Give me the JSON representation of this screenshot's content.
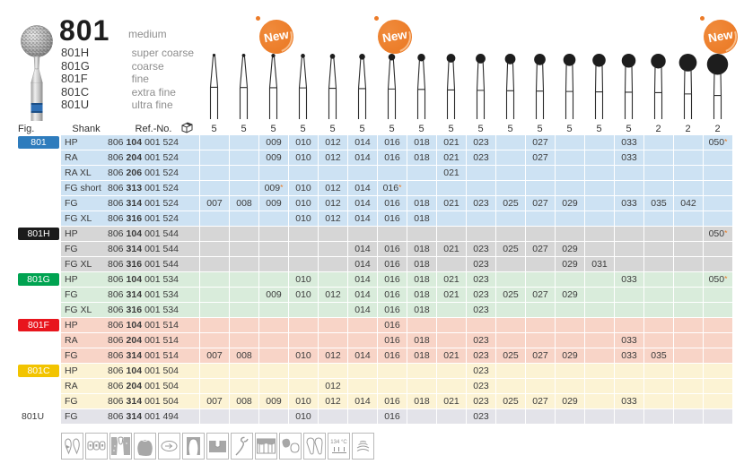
{
  "page": {
    "product_number": "801",
    "product_finish": "medium",
    "variants": [
      {
        "code": "801H",
        "finish": "super coarse"
      },
      {
        "code": "801G",
        "finish": "coarse"
      },
      {
        "code": "801F",
        "finish": "fine"
      },
      {
        "code": "801C",
        "finish": "extra fine"
      },
      {
        "code": "801U",
        "finish": "ultra fine"
      }
    ]
  },
  "badges": {
    "label": "New",
    "color": "#ec7b28",
    "columns": [
      3,
      7,
      18
    ]
  },
  "burs": {
    "head_sizes": [
      7,
      8,
      9,
      10,
      12,
      14,
      16,
      18,
      21,
      23,
      25,
      27,
      29,
      31,
      33,
      35,
      42,
      50
    ]
  },
  "table": {
    "headers": {
      "fig": "Fig.",
      "shank": "Shank",
      "ref": "Ref.-No."
    },
    "pack_sizes": [
      "5",
      "5",
      "5",
      "5",
      "5",
      "5",
      "5",
      "5",
      "5",
      "5",
      "5",
      "5",
      "5",
      "5",
      "5",
      "2",
      "2",
      "2"
    ],
    "groups": [
      {
        "fig": "801",
        "chip_color": "#2e7cbd",
        "chip_text_color": "#ffffff",
        "row_color": "#cde2f3",
        "rows": [
          {
            "shank": "HP",
            "ref": {
              "a": "806",
              "b": "104",
              "c": "001 524"
            },
            "sizes": [
              "",
              "",
              "009",
              "010",
              "012",
              "014",
              "016",
              "018",
              "021",
              "023",
              "",
              "027",
              "",
              "",
              "033",
              "",
              "",
              "050*"
            ]
          },
          {
            "shank": "RA",
            "ref": {
              "a": "806",
              "b": "204",
              "c": "001 524"
            },
            "sizes": [
              "",
              "",
              "009",
              "010",
              "012",
              "014",
              "016",
              "018",
              "021",
              "023",
              "",
              "027",
              "",
              "",
              "033",
              "",
              "",
              ""
            ]
          },
          {
            "shank": "RA XL",
            "ref": {
              "a": "806",
              "b": "206",
              "c": "001 524"
            },
            "sizes": [
              "",
              "",
              "",
              "",
              "",
              "",
              "",
              "",
              "021",
              "",
              "",
              "",
              "",
              "",
              "",
              "",
              "",
              ""
            ]
          },
          {
            "shank": "FG short",
            "ref": {
              "a": "806",
              "b": "313",
              "c": "001 524"
            },
            "sizes": [
              "",
              "",
              "009*",
              "010",
              "012",
              "014",
              "016*",
              "",
              "",
              "",
              "",
              "",
              "",
              "",
              "",
              "",
              "",
              ""
            ]
          },
          {
            "shank": "FG",
            "ref": {
              "a": "806",
              "b": "314",
              "c": "001 524"
            },
            "sizes": [
              "007",
              "008",
              "009",
              "010",
              "012",
              "014",
              "016",
              "018",
              "021",
              "023",
              "025",
              "027",
              "029",
              "",
              "033",
              "035",
              "042",
              ""
            ]
          },
          {
            "shank": "FG XL",
            "ref": {
              "a": "806",
              "b": "316",
              "c": "001 524"
            },
            "sizes": [
              "",
              "",
              "",
              "010",
              "012",
              "014",
              "016",
              "018",
              "",
              "",
              "",
              "",
              "",
              "",
              "",
              "",
              "",
              ""
            ]
          }
        ]
      },
      {
        "fig": "801H",
        "chip_color": "#1b1b1b",
        "chip_text_color": "#ffffff",
        "row_color": "#d6d6d6",
        "rows": [
          {
            "shank": "HP",
            "ref": {
              "a": "806",
              "b": "104",
              "c": "001 544"
            },
            "sizes": [
              "",
              "",
              "",
              "",
              "",
              "",
              "",
              "",
              "",
              "",
              "",
              "",
              "",
              "",
              "",
              "",
              "",
              "050*"
            ]
          },
          {
            "shank": "FG",
            "ref": {
              "a": "806",
              "b": "314",
              "c": "001 544"
            },
            "sizes": [
              "",
              "",
              "",
              "",
              "",
              "014",
              "016",
              "018",
              "021",
              "023",
              "025",
              "027",
              "029",
              "",
              "",
              "",
              "",
              ""
            ]
          },
          {
            "shank": "FG XL",
            "ref": {
              "a": "806",
              "b": "316",
              "c": "001 544"
            },
            "sizes": [
              "",
              "",
              "",
              "",
              "",
              "014",
              "016",
              "018",
              "",
              "023",
              "",
              "",
              "029",
              "031",
              "",
              "",
              "",
              ""
            ]
          }
        ]
      },
      {
        "fig": "801G",
        "chip_color": "#00a351",
        "chip_text_color": "#ffffff",
        "row_color": "#d9ecdb",
        "rows": [
          {
            "shank": "HP",
            "ref": {
              "a": "806",
              "b": "104",
              "c": "001 534"
            },
            "sizes": [
              "",
              "",
              "",
              "010",
              "",
              "014",
              "016",
              "018",
              "021",
              "023",
              "",
              "",
              "",
              "",
              "033",
              "",
              "",
              "050*"
            ]
          },
          {
            "shank": "FG",
            "ref": {
              "a": "806",
              "b": "314",
              "c": "001 534"
            },
            "sizes": [
              "",
              "",
              "009",
              "010",
              "012",
              "014",
              "016",
              "018",
              "021",
              "023",
              "025",
              "027",
              "029",
              "",
              "",
              "",
              "",
              ""
            ]
          },
          {
            "shank": "FG XL",
            "ref": {
              "a": "806",
              "b": "316",
              "c": "001 534"
            },
            "sizes": [
              "",
              "",
              "",
              "",
              "",
              "014",
              "016",
              "018",
              "",
              "023",
              "",
              "",
              "",
              "",
              "",
              "",
              "",
              ""
            ]
          }
        ]
      },
      {
        "fig": "801F",
        "chip_color": "#e8151d",
        "chip_text_color": "#ffffff",
        "row_color": "#f8d4c7",
        "rows": [
          {
            "shank": "HP",
            "ref": {
              "a": "806",
              "b": "104",
              "c": "001 514"
            },
            "sizes": [
              "",
              "",
              "",
              "",
              "",
              "",
              "016",
              "",
              "",
              "",
              "",
              "",
              "",
              "",
              "",
              "",
              "",
              ""
            ]
          },
          {
            "shank": "RA",
            "ref": {
              "a": "806",
              "b": "204",
              "c": "001 514"
            },
            "sizes": [
              "",
              "",
              "",
              "",
              "",
              "",
              "016",
              "018",
              "",
              "023",
              "",
              "",
              "",
              "",
              "033",
              "",
              "",
              ""
            ]
          },
          {
            "shank": "FG",
            "ref": {
              "a": "806",
              "b": "314",
              "c": "001 514"
            },
            "sizes": [
              "007",
              "008",
              "",
              "010",
              "012",
              "014",
              "016",
              "018",
              "021",
              "023",
              "025",
              "027",
              "029",
              "",
              "033",
              "035",
              "",
              ""
            ]
          }
        ]
      },
      {
        "fig": "801C",
        "chip_color": "#f2c400",
        "chip_text_color": "#ffffff",
        "row_color": "#fcf3d4",
        "rows": [
          {
            "shank": "HP",
            "ref": {
              "a": "806",
              "b": "104",
              "c": "001 504"
            },
            "sizes": [
              "",
              "",
              "",
              "",
              "",
              "",
              "",
              "",
              "",
              "023",
              "",
              "",
              "",
              "",
              "",
              "",
              "",
              ""
            ]
          },
          {
            "shank": "RA",
            "ref": {
              "a": "806",
              "b": "204",
              "c": "001 504"
            },
            "sizes": [
              "",
              "",
              "",
              "",
              "012",
              "",
              "",
              "",
              "",
              "023",
              "",
              "",
              "",
              "",
              "",
              "",
              "",
              ""
            ]
          },
          {
            "shank": "FG",
            "ref": {
              "a": "806",
              "b": "314",
              "c": "001 504"
            },
            "sizes": [
              "007",
              "008",
              "009",
              "010",
              "012",
              "014",
              "016",
              "018",
              "021",
              "023",
              "025",
              "027",
              "029",
              "",
              "033",
              "",
              "",
              ""
            ]
          }
        ]
      },
      {
        "fig": "801U",
        "chip_color": null,
        "chip_text_color": "#3a3a3a",
        "row_color": "#e3e3e9",
        "rows": [
          {
            "shank": "FG",
            "ref": {
              "a": "806",
              "b": "314",
              "c": "001 494"
            },
            "sizes": [
              "",
              "",
              "",
              "010",
              "",
              "",
              "016",
              "",
              "",
              "023",
              "",
              "",
              "",
              "",
              "",
              "",
              "",
              ""
            ]
          }
        ]
      }
    ]
  },
  "footer": {
    "icons": [
      {
        "name": "tooth-preparation-icon"
      },
      {
        "name": "orthodontic-brackets-icon"
      },
      {
        "name": "extraction-socket-icon"
      },
      {
        "name": "crown-icon"
      },
      {
        "name": "occlusal-adjust-icon"
      },
      {
        "name": "molar-icon"
      },
      {
        "name": "inlay-icon"
      },
      {
        "name": "scaler-instrument-icon"
      },
      {
        "name": "veneer-row-icon"
      },
      {
        "name": "crown-bridge-icon"
      },
      {
        "name": "denture-icon"
      },
      {
        "name": "sterilize-134-icon",
        "label": "134 °C"
      },
      {
        "name": "ceramic-waves-icon"
      }
    ]
  }
}
